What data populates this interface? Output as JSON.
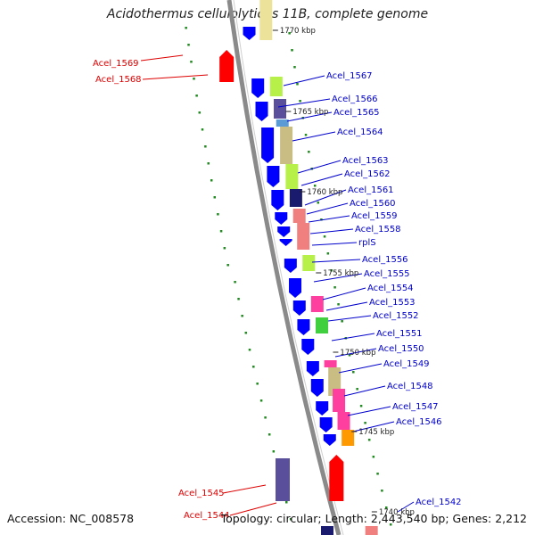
{
  "title": "Acidothermus cellulolyticus 11B, complete genome",
  "footer": {
    "accession": "Accession: NC_008578",
    "topology": "Topology: circular; Length: 2,443,540 bp; Genes: 2,212"
  },
  "kbp_marks": [
    "1770 kbp",
    "1765 kbp",
    "1760 kbp",
    "1755 kbp",
    "1750 kbp",
    "1745 kbp",
    "1740 kbp"
  ],
  "left_labels": [
    "Acel_1569",
    "Acel_1568",
    "Acel_1545",
    "Acel_1544"
  ],
  "right_labels": [
    "Acel_1567",
    "Acel_1566",
    "Acel_1565",
    "Acel_1564",
    "Acel_1563",
    "Acel_1562",
    "Acel_1561",
    "Acel_1560",
    "Acel_1559",
    "Acel_1558",
    "rplS",
    "Acel_1556",
    "Acel_1555",
    "Acel_1554",
    "Acel_1553",
    "Acel_1552",
    "Acel_1551",
    "Acel_1550",
    "Acel_1549",
    "Acel_1548",
    "Acel_1547",
    "Acel_1546",
    "Acel_1542"
  ],
  "colors": {
    "backbone": "#8a8a8a",
    "forward_gene": "#ff0000",
    "reverse_gene": "#0000ff",
    "left_label": "#dd0000",
    "right_label": "#0000cc",
    "gc_ticks": "#228b22"
  }
}
